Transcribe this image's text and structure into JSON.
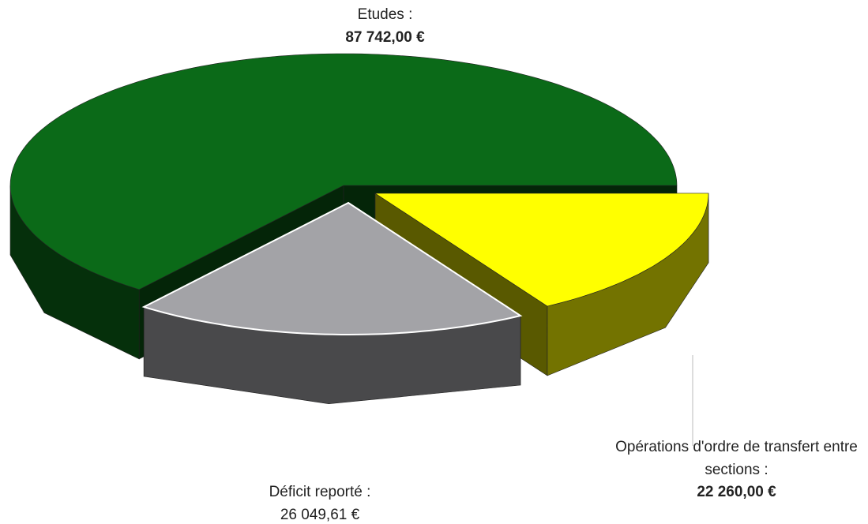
{
  "chart_data": {
    "type": "pie3d",
    "categories": [
      "Opérations d'ordre de transfert entre sections :",
      "Déficit reporté :",
      "Etudes :"
    ],
    "values": [
      22260.0,
      26049.61,
      87742.0
    ],
    "value_labels": [
      "22 260,00 €",
      "26 049,61 €",
      "87 742,00 €"
    ],
    "colors": [
      "#ffff00",
      "#a3a3a7",
      "#0b6a18"
    ]
  }
}
